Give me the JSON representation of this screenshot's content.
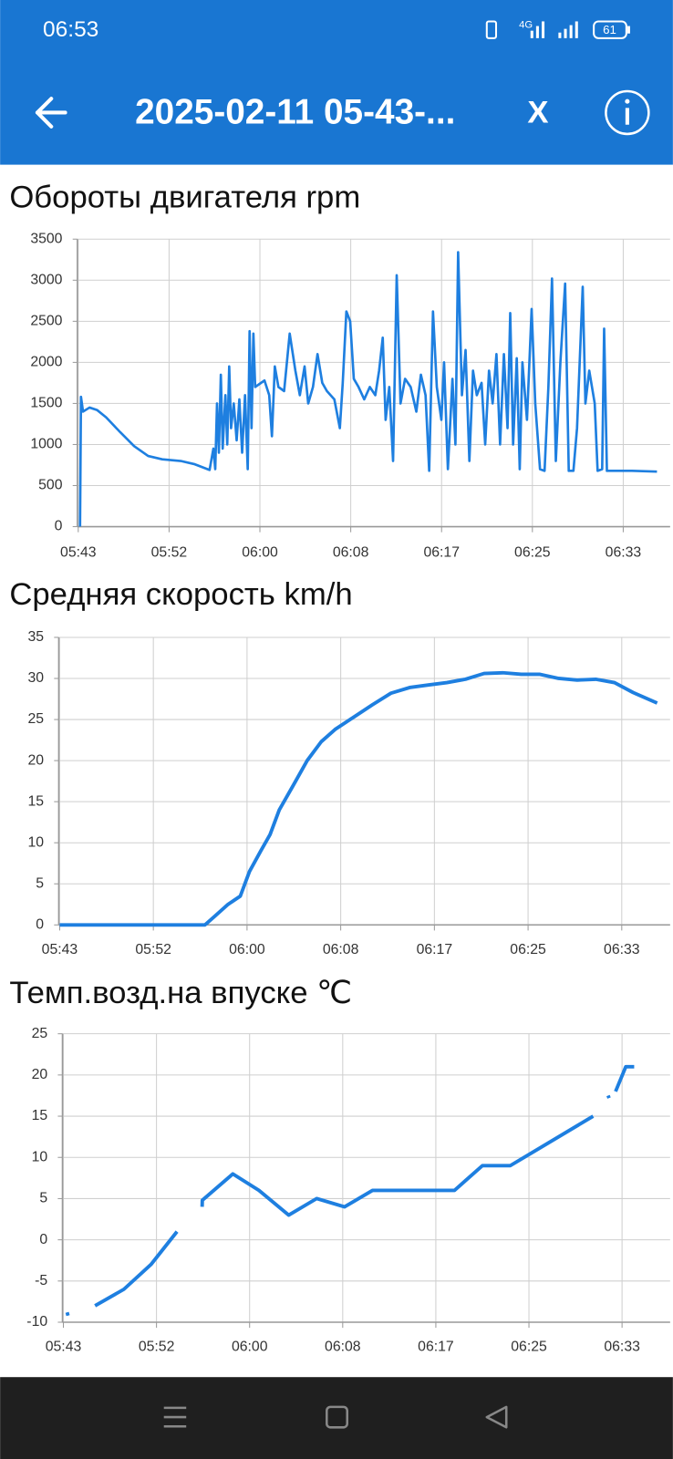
{
  "status_bar": {
    "time": "06:53",
    "network": "4G",
    "battery": "61"
  },
  "app_bar": {
    "title": "2025-02-11 05-43-...",
    "close": "X"
  },
  "chart_data": [
    {
      "type": "line",
      "title": "Обороты двигателя rpm",
      "color": "#1e7fe0",
      "grid": true,
      "xlim": [
        "05:43:37",
        "06:38:00"
      ],
      "xticks": [
        {
          "value": "05:43:42",
          "label": "05:43"
        },
        {
          "value": "05:52:02",
          "label": "05:52"
        },
        {
          "value": "06:00:22",
          "label": "06:00"
        },
        {
          "value": "06:08:42",
          "label": "06:08"
        },
        {
          "value": "06:17:02",
          "label": "06:17"
        },
        {
          "value": "06:25:22",
          "label": "06:25"
        },
        {
          "value": "06:33:42",
          "label": "06:33"
        }
      ],
      "ylim": [
        0,
        3500
      ],
      "yticks": [
        0,
        500,
        1000,
        1500,
        2000,
        2500,
        3000,
        3500
      ],
      "x": [
        "05:43:52",
        "05:43:57",
        "05:44:08",
        "05:44:44",
        "05:45:25",
        "05:46:16",
        "05:47:33",
        "05:48:50",
        "05:50:07",
        "05:51:24",
        "05:53:06",
        "05:54:23",
        "05:55:45",
        "05:56:06",
        "05:56:16",
        "05:56:26",
        "05:56:36",
        "05:56:47",
        "05:56:57",
        "05:57:12",
        "05:57:22",
        "05:57:33",
        "05:57:43",
        "05:57:58",
        "05:58:14",
        "05:58:29",
        "05:58:44",
        "05:59:00",
        "05:59:15",
        "05:59:25",
        "05:59:36",
        "05:59:46",
        "05:59:56",
        "06:00:47",
        "06:01:13",
        "06:01:28",
        "06:01:44",
        "06:02:04",
        "06:02:35",
        "06:03:06",
        "06:03:37",
        "06:04:02",
        "06:04:28",
        "06:04:48",
        "06:05:14",
        "06:05:39",
        "06:06:05",
        "06:06:31",
        "06:07:12",
        "06:07:42",
        "06:07:58",
        "06:08:18",
        "06:08:39",
        "06:08:59",
        "06:09:25",
        "06:09:56",
        "06:10:27",
        "06:10:57",
        "06:11:18",
        "06:11:38",
        "06:11:54",
        "06:12:14",
        "06:12:35",
        "06:12:55",
        "06:13:16",
        "06:13:41",
        "06:14:12",
        "06:14:43",
        "06:15:08",
        "06:15:34",
        "06:15:54",
        "06:16:15",
        "06:16:36",
        "06:17:01",
        "06:17:16",
        "06:17:37",
        "06:18:02",
        "06:18:18",
        "06:18:33",
        "06:18:54",
        "06:19:14",
        "06:19:35",
        "06:19:55",
        "06:20:16",
        "06:20:42",
        "06:21:02",
        "06:21:23",
        "06:21:43",
        "06:22:04",
        "06:22:24",
        "06:22:45",
        "06:23:05",
        "06:23:20",
        "06:23:36",
        "06:23:56",
        "06:24:12",
        "06:24:27",
        "06:24:52",
        "06:25:18",
        "06:25:38",
        "06:26:04",
        "06:26:29",
        "06:26:50",
        "06:27:10",
        "06:27:31",
        "06:27:56",
        "06:28:22",
        "06:28:42",
        "06:29:08",
        "06:29:28",
        "06:29:59",
        "06:30:14",
        "06:30:35",
        "06:31:05",
        "06:31:21",
        "06:31:46",
        "06:31:57",
        "06:32:12",
        "06:34:30",
        "06:36:48"
      ],
      "values": [
        0,
        1580,
        1400,
        1450,
        1420,
        1330,
        1150,
        980,
        860,
        820,
        800,
        760,
        690,
        950,
        700,
        1500,
        900,
        1850,
        950,
        1600,
        1000,
        1950,
        1200,
        1500,
        1050,
        1550,
        900,
        1600,
        700,
        2380,
        1200,
        2350,
        1700,
        1780,
        1600,
        1100,
        1950,
        1700,
        1650,
        2350,
        1900,
        1600,
        1950,
        1500,
        1700,
        2100,
        1750,
        1650,
        1550,
        1200,
        1750,
        2620,
        2500,
        1800,
        1700,
        1550,
        1700,
        1600,
        1900,
        2300,
        1300,
        1700,
        800,
        3060,
        1500,
        1800,
        1700,
        1400,
        1850,
        1600,
        680,
        2620,
        1700,
        1300,
        2000,
        700,
        1800,
        1000,
        3340,
        1600,
        2150,
        800,
        1900,
        1600,
        1750,
        1000,
        1900,
        1500,
        2100,
        1000,
        2100,
        1200,
        2600,
        1000,
        2050,
        700,
        2000,
        1300,
        2650,
        1500,
        700,
        680,
        1700,
        3020,
        800,
        2000,
        2960,
        680,
        680,
        1200,
        2920,
        1500,
        1900,
        1500,
        680,
        700,
        2410,
        680,
        680,
        670
      ]
    },
    {
      "type": "line",
      "title": "Средняя скорость km/h",
      "color": "#1e7fe0",
      "grid": true,
      "xlim": [
        "05:43:37",
        "06:38:00"
      ],
      "xticks": [
        {
          "value": "05:43:42",
          "label": "05:43"
        },
        {
          "value": "05:52:02",
          "label": "05:52"
        },
        {
          "value": "06:00:22",
          "label": "06:00"
        },
        {
          "value": "06:08:42",
          "label": "06:08"
        },
        {
          "value": "06:17:02",
          "label": "06:17"
        },
        {
          "value": "06:25:22",
          "label": "06:25"
        },
        {
          "value": "06:33:42",
          "label": "06:33"
        }
      ],
      "ylim": [
        0,
        35
      ],
      "yticks": [
        0,
        5,
        10,
        15,
        20,
        25,
        30,
        35
      ],
      "x": [
        "05:43:42",
        "05:56:37",
        "05:57:27",
        "05:58:41",
        "05:59:46",
        "06:00:35",
        "06:01:35",
        "06:02:25",
        "06:03:14",
        "06:04:29",
        "06:05:43",
        "06:06:58",
        "06:08:12",
        "06:09:52",
        "06:11:31",
        "06:13:10",
        "06:14:50",
        "06:16:29",
        "06:18:09",
        "06:19:48",
        "06:21:27",
        "06:23:07",
        "06:24:46",
        "06:26:25",
        "06:28:05",
        "06:29:44",
        "06:31:23",
        "06:33:03",
        "06:34:42",
        "06:36:51"
      ],
      "values": [
        0,
        0,
        1,
        2.5,
        3.5,
        6.5,
        9,
        11,
        14,
        17,
        20,
        22.3,
        23.8,
        25.3,
        26.8,
        28.2,
        28.9,
        29.2,
        29.5,
        29.9,
        30.6,
        30.7,
        30.5,
        30.5,
        30,
        29.8,
        29.9,
        29.5,
        28.3,
        27
      ]
    },
    {
      "type": "line",
      "title": "Темп.возд.на впуске ℃",
      "color": "#1e7fe0",
      "grid": true,
      "xlim": [
        "05:43:37",
        "06:38:00"
      ],
      "xticks": [
        {
          "value": "05:43:42",
          "label": "05:43"
        },
        {
          "value": "05:52:02",
          "label": "05:52"
        },
        {
          "value": "06:00:22",
          "label": "06:00"
        },
        {
          "value": "06:08:42",
          "label": "06:08"
        },
        {
          "value": "06:17:02",
          "label": "06:17"
        },
        {
          "value": "06:25:22",
          "label": "06:25"
        },
        {
          "value": "06:33:42",
          "label": "06:33"
        }
      ],
      "ylim": [
        -10,
        25
      ],
      "yticks": [
        -10,
        -5,
        0,
        5,
        10,
        15,
        20,
        25
      ],
      "x": [
        "05:44:02",
        "05:44:07",
        null,
        "05:46:32",
        "05:49:07",
        "05:51:32",
        "05:53:52",
        null,
        "05:56:07",
        "05:56:08",
        "05:58:52",
        "06:01:12",
        "06:03:52",
        "06:06:22",
        "06:08:52",
        "06:11:22",
        "06:18:42",
        "06:21:12",
        "06:23:42",
        "06:31:07",
        null,
        "06:32:27",
        "06:32:32",
        null,
        "06:33:07",
        "06:34:02",
        "06:34:47"
      ],
      "values": [
        -8.8,
        -9.2,
        null,
        -8,
        -6,
        -3,
        1,
        null,
        4,
        4.8,
        8,
        6,
        3,
        5,
        4,
        6,
        6,
        9,
        9,
        15,
        null,
        17.5,
        17.2,
        null,
        18,
        21,
        21
      ]
    }
  ]
}
